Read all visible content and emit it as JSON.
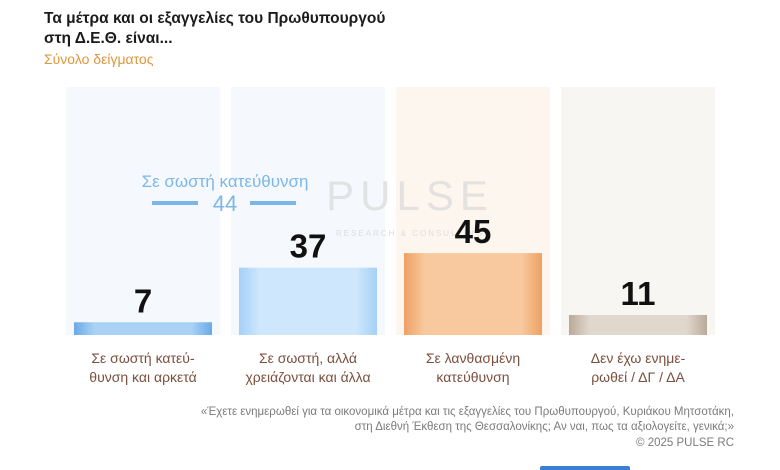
{
  "header": {
    "title": "Τα μέτρα και οι εξαγγελίες του Πρωθυπουργού\nστη Δ.Ε.Θ. είναι...",
    "subtitle": "Σύνολο δείγματος"
  },
  "watermark": {
    "brand": "PULSE",
    "tagline": "RESEARCH & CONSULTING"
  },
  "chart_data": {
    "type": "bar",
    "title": "Τα μέτρα και οι εξαγγελίες του Πρωθυπουργού στη Δ.Ε.Θ. είναι...",
    "subtitle": "Σύνολο δείγματος",
    "categories": [
      "Σε σωστή κατεύ-\nθυνση και αρκετά",
      "Σε σωστή, αλλά\nχρειάζονται και άλλα",
      "Σε λανθασμένη\nκατεύθυνση",
      "Δεν έχω ενημε-\nρωθεί / ΔΓ / ΔΑ"
    ],
    "values": [
      7,
      37,
      45,
      11
    ],
    "bar_colors": [
      "#8ec0ee",
      "#b8dcfa",
      "#f2b27c",
      "#cfc3b4"
    ],
    "panel_colors": [
      "#f5f9fe",
      "#f5f9fe",
      "#fdf6ef",
      "#f8f6f3"
    ],
    "ylim": [
      0,
      50
    ],
    "annotation": {
      "label": "Σε σωστή κατεύθυνση",
      "value": 44,
      "color": "#7cb7ea"
    }
  },
  "footer": {
    "question": "«Έχετε ενημερωθεί για τα οικονομικά μέτρα και τις εξαγγελίες του Πρωθυπουργού, Κυριάκου Μητσοτάκη,\nστη Διεθνή Έκθεση της Θεσσαλονίκης; Αν ναι, πως τα αξιολογείτε, γενικά;»",
    "copyright": "©  2025  PULSE RC"
  }
}
